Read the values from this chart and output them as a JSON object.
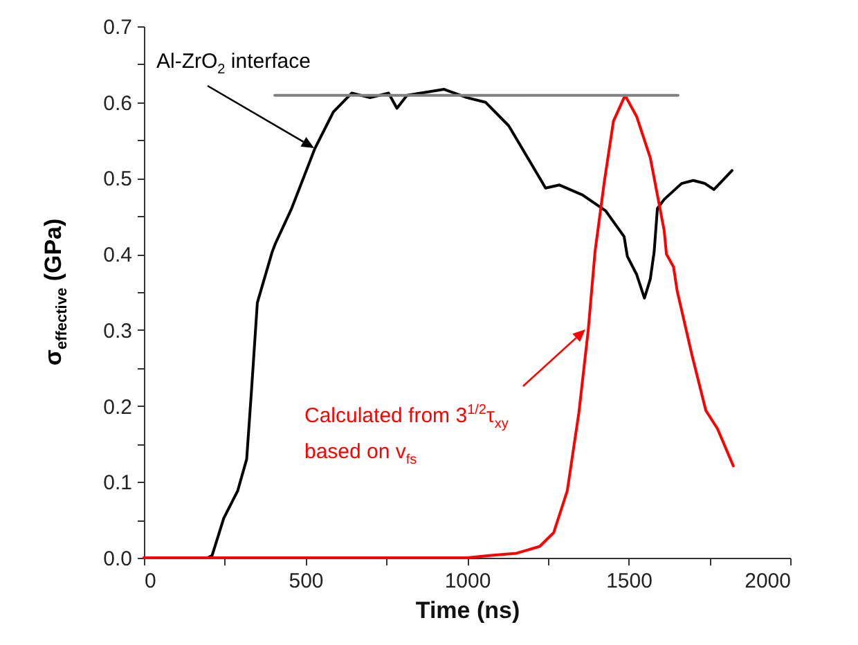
{
  "chart_data": {
    "type": "line",
    "xlabel": "Time (ns)",
    "ylabel": "σ$_{effective}$ (GPa)",
    "xlim": [
      0,
      2000
    ],
    "ylim": [
      0,
      0.7
    ],
    "xticks": [
      0,
      {
        "value": 250,
        "label": null
      },
      500,
      {
        "value": 750,
        "label": null
      },
      1000,
      {
        "value": 1250,
        "label": null
      },
      1500,
      {
        "value": 1750,
        "label": null
      },
      2000
    ],
    "yticks": [
      "0.0",
      {
        "value": 0.05,
        "label": null
      },
      0.1,
      {
        "value": 0.15,
        "label": null
      },
      0.2,
      {
        "value": 0.25,
        "label": null
      },
      0.3,
      {
        "value": 0.35,
        "label": null
      },
      0.4,
      {
        "value": 0.45,
        "label": null
      },
      0.5,
      {
        "value": 0.55,
        "label": null
      },
      0.6,
      {
        "value": 0.65,
        "label": null
      },
      0.7
    ],
    "grid": false,
    "line_style": "solid",
    "marker": "none",
    "series": [
      {
        "color": "#000000",
        "x": [
          0,
          197,
          211,
          247,
          290,
          318,
          333,
          351,
          397,
          407,
          457,
          529,
          586,
          643,
          700,
          757,
          783,
          814,
          929,
          1000,
          1057,
          1129,
          1214,
          1243,
          1286,
          1357,
          1429,
          1486,
          1496,
          1525,
          1549,
          1567,
          1579,
          1589,
          1610,
          1664,
          1700,
          1736,
          1764,
          1820
        ],
        "values": [
          0,
          0,
          0.003,
          0.052,
          0.088,
          0.13,
          0.221,
          0.336,
          0.403,
          0.414,
          0.46,
          0.539,
          0.587,
          0.612,
          0.606,
          0.612,
          0.592,
          0.609,
          0.617,
          0.606,
          0.6,
          0.569,
          0.508,
          0.487,
          0.491,
          0.478,
          0.457,
          0.423,
          0.397,
          0.373,
          0.342,
          0.367,
          0.403,
          0.46,
          0.472,
          0.493,
          0.497,
          0.493,
          0.485,
          0.51
        ]
      },
      {
        "color": "#ff0000",
        "x": [
          0,
          1000,
          1068,
          1153,
          1225,
          1268,
          1310,
          1346,
          1375,
          1396,
          1425,
          1453,
          1489,
          1525,
          1567,
          1610,
          1617,
          1639,
          1650,
          1696,
          1739,
          1775,
          1824
        ],
        "values": [
          0,
          0,
          0.003,
          0.006,
          0.015,
          0.033,
          0.088,
          0.191,
          0.3,
          0.403,
          0.496,
          0.575,
          0.609,
          0.581,
          0.527,
          0.431,
          0.4,
          0.383,
          0.352,
          0.267,
          0.194,
          0.17,
          0.121
        ]
      },
      {
        "color": "#808080",
        "x": [
          405,
          1653
        ],
        "values": [
          0.609,
          0.609
        ]
      }
    ],
    "annotations": [
      "Al-ZrO$_{2}$ interface",
      "Calculated from 3$^{1/2}$τ$_{xy}$",
      "based on v$_{fs}$"
    ]
  }
}
